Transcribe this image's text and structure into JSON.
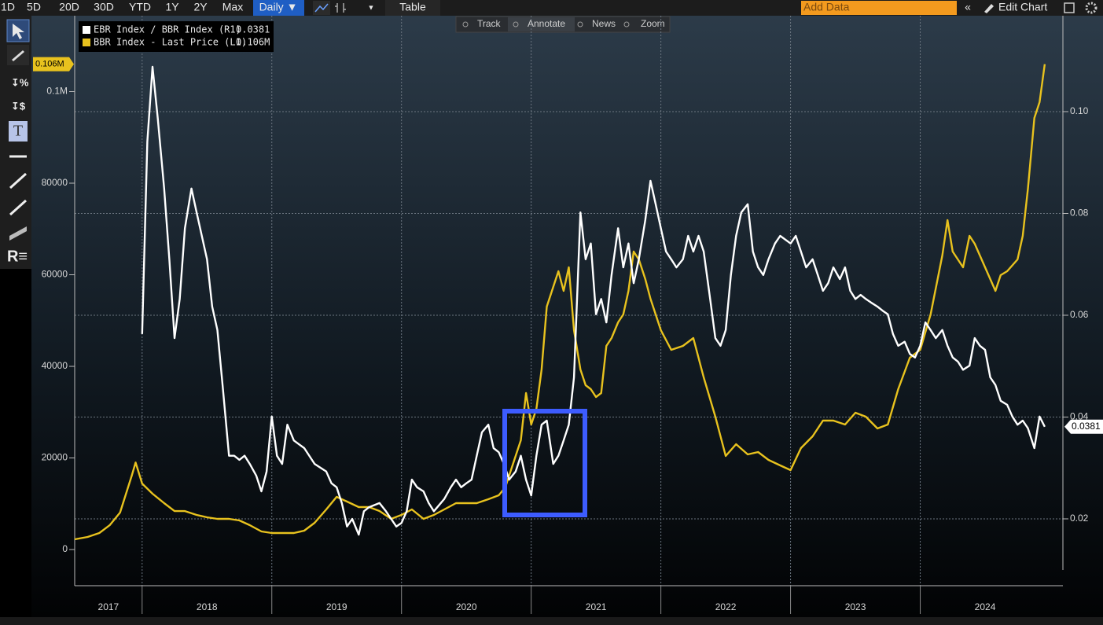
{
  "toolbar": {
    "ranges": [
      "1D",
      "5D",
      "20D",
      "30D",
      "YTD",
      "1Y",
      "2Y",
      "Max"
    ],
    "frequency": "Daily ▼",
    "table": "Table",
    "add_data": "Add Data",
    "edit_chart": "Edit Chart"
  },
  "annotation_bar": [
    "Track",
    "Annotate",
    "News",
    "Zoom"
  ],
  "chart_data": {
    "type": "line",
    "xlim": [
      2017.48,
      2025.1
    ],
    "xticks": [
      2017,
      2018,
      2019,
      2020,
      2021,
      2022,
      2023,
      2024
    ],
    "ylim": [
      -7900,
      116570
    ],
    "yticks": [
      0,
      20000,
      40000,
      60000,
      80000,
      {
        "value": 100000,
        "label": "0.1M"
      }
    ],
    "y2lim": [
      0.00687,
      0.11884
    ],
    "y2ticks": [
      0.02,
      0.04,
      0.06,
      0.08,
      {
        "value": 0.1,
        "label": "0.10"
      }
    ],
    "grid": true,
    "grid_axis": "y2",
    "series": [
      {
        "name": "EBR Index / BBR Index (R1)",
        "color": "#ffffff",
        "axis": "y2",
        "x": [
          2018.0,
          2018.04,
          2018.08,
          2018.12,
          2018.17,
          2018.21,
          2018.25,
          2018.29,
          2018.33,
          2018.38,
          2018.42,
          2018.46,
          2018.5,
          2018.54,
          2018.58,
          2018.62,
          2018.67,
          2018.71,
          2018.75,
          2018.79,
          2018.83,
          2018.88,
          2018.92,
          2018.96,
          2019.0,
          2019.04,
          2019.08,
          2019.12,
          2019.17,
          2019.25,
          2019.33,
          2019.42,
          2019.46,
          2019.5,
          2019.54,
          2019.58,
          2019.62,
          2019.67,
          2019.71,
          2019.75,
          2019.83,
          2019.88,
          2019.92,
          2019.96,
          2020.0,
          2020.04,
          2020.08,
          2020.12,
          2020.17,
          2020.21,
          2020.25,
          2020.33,
          2020.38,
          2020.42,
          2020.46,
          2020.5,
          2020.54,
          2020.58,
          2020.62,
          2020.67,
          2020.71,
          2020.75,
          2020.79,
          2020.83,
          2020.88,
          2020.92,
          2020.96,
          2021.0,
          2021.04,
          2021.08,
          2021.12,
          2021.17,
          2021.21,
          2021.25,
          2021.29,
          2021.33,
          2021.38,
          2021.42,
          2021.46,
          2021.5,
          2021.54,
          2021.58,
          2021.62,
          2021.67,
          2021.71,
          2021.75,
          2021.79,
          2021.83,
          2021.88,
          2021.92,
          2021.96,
          2022.0,
          2022.04,
          2022.08,
          2022.12,
          2022.17,
          2022.21,
          2022.25,
          2022.29,
          2022.33,
          2022.38,
          2022.42,
          2022.46,
          2022.5,
          2022.54,
          2022.58,
          2022.62,
          2022.67,
          2022.71,
          2022.75,
          2022.79,
          2022.83,
          2022.88,
          2022.92,
          2023.0,
          2023.04,
          2023.08,
          2023.12,
          2023.17,
          2023.21,
          2023.25,
          2023.29,
          2023.33,
          2023.38,
          2023.42,
          2023.46,
          2023.5,
          2023.54,
          2023.58,
          2023.62,
          2023.67,
          2023.71,
          2023.75,
          2023.79,
          2023.83,
          2023.88,
          2023.92,
          2023.96,
          2024.0,
          2024.04,
          2024.08,
          2024.12,
          2024.17,
          2024.21,
          2024.25,
          2024.29,
          2024.33,
          2024.38,
          2024.42,
          2024.46,
          2024.5,
          2024.54,
          2024.58,
          2024.62,
          2024.67,
          2024.71,
          2024.75,
          2024.79,
          2024.83,
          2024.88,
          2024.92,
          2024.96
        ],
        "values": [
          0.0563,
          0.0941,
          0.1088,
          0.0988,
          0.0849,
          0.071,
          0.0555,
          0.0632,
          0.0771,
          0.0849,
          0.0802,
          0.0756,
          0.071,
          0.0617,
          0.0571,
          0.0463,
          0.0324,
          0.0324,
          0.0316,
          0.0324,
          0.0308,
          0.0285,
          0.0254,
          0.0293,
          0.0401,
          0.0324,
          0.0308,
          0.0385,
          0.0354,
          0.0339,
          0.0308,
          0.0293,
          0.027,
          0.0262,
          0.0231,
          0.0185,
          0.02,
          0.0169,
          0.0215,
          0.0223,
          0.0231,
          0.0215,
          0.02,
          0.0185,
          0.0192,
          0.0215,
          0.0277,
          0.0262,
          0.0254,
          0.0231,
          0.0215,
          0.0239,
          0.0262,
          0.0277,
          0.0262,
          0.027,
          0.0277,
          0.0324,
          0.037,
          0.0385,
          0.0339,
          0.0331,
          0.0308,
          0.0277,
          0.0293,
          0.0324,
          0.0277,
          0.0246,
          0.0324,
          0.0385,
          0.0393,
          0.0308,
          0.0324,
          0.0354,
          0.0385,
          0.0478,
          0.0802,
          0.071,
          0.0741,
          0.0602,
          0.0632,
          0.0586,
          0.0679,
          0.0771,
          0.0694,
          0.0741,
          0.0663,
          0.071,
          0.0787,
          0.0864,
          0.0818,
          0.0771,
          0.0725,
          0.071,
          0.0694,
          0.071,
          0.0756,
          0.0725,
          0.0756,
          0.0725,
          0.0632,
          0.0555,
          0.054,
          0.0571,
          0.0679,
          0.0756,
          0.0802,
          0.0818,
          0.0725,
          0.0694,
          0.0679,
          0.071,
          0.0741,
          0.0756,
          0.0741,
          0.0756,
          0.0725,
          0.0694,
          0.071,
          0.0679,
          0.0648,
          0.0663,
          0.0694,
          0.0671,
          0.0694,
          0.0648,
          0.0632,
          0.064,
          0.0632,
          0.0625,
          0.0617,
          0.0609,
          0.0602,
          0.0563,
          0.054,
          0.0548,
          0.0524,
          0.0517,
          0.054,
          0.0586,
          0.0571,
          0.0555,
          0.0571,
          0.054,
          0.0517,
          0.0509,
          0.0493,
          0.0501,
          0.0555,
          0.054,
          0.0532,
          0.0478,
          0.0463,
          0.0432,
          0.0424,
          0.0401,
          0.0385,
          0.0393,
          0.0378,
          0.0339,
          0.0401,
          0.0381
        ]
      },
      {
        "name": "BBR Index - Last Price (L1)",
        "color": "#e8c21e",
        "axis": "y",
        "last_value_label": "0.106M",
        "x": [
          2017.48,
          2017.58,
          2017.67,
          2017.75,
          2017.83,
          2017.92,
          2017.95,
          2018.0,
          2018.08,
          2018.17,
          2018.25,
          2018.33,
          2018.42,
          2018.5,
          2018.58,
          2018.67,
          2018.75,
          2018.83,
          2018.92,
          2019.0,
          2019.08,
          2019.17,
          2019.25,
          2019.33,
          2019.42,
          2019.5,
          2019.58,
          2019.67,
          2019.75,
          2019.83,
          2019.92,
          2020.0,
          2020.08,
          2020.17,
          2020.25,
          2020.33,
          2020.42,
          2020.5,
          2020.58,
          2020.67,
          2020.75,
          2020.8,
          2020.83,
          2020.92,
          2020.96,
          2021.0,
          2021.04,
          2021.08,
          2021.12,
          2021.17,
          2021.21,
          2021.25,
          2021.29,
          2021.33,
          2021.38,
          2021.42,
          2021.46,
          2021.5,
          2021.54,
          2021.58,
          2021.62,
          2021.67,
          2021.71,
          2021.75,
          2021.79,
          2021.83,
          2021.88,
          2021.92,
          2022.0,
          2022.08,
          2022.17,
          2022.25,
          2022.33,
          2022.42,
          2022.5,
          2022.58,
          2022.67,
          2022.75,
          2022.83,
          2022.92,
          2023.0,
          2023.08,
          2023.17,
          2023.25,
          2023.33,
          2023.42,
          2023.5,
          2023.58,
          2023.67,
          2023.75,
          2023.83,
          2023.92,
          2024.0,
          2024.08,
          2024.17,
          2024.21,
          2024.25,
          2024.33,
          2024.38,
          2024.42,
          2024.5,
          2024.58,
          2024.62,
          2024.67,
          2024.75,
          2024.79,
          2024.83,
          2024.88,
          2024.92,
          2024.96
        ],
        "values": [
          2230,
          2750,
          3600,
          5300,
          8070,
          16140,
          19000,
          14400,
          12190,
          10130,
          8400,
          8400,
          7550,
          7040,
          6700,
          6700,
          6350,
          5320,
          3950,
          3600,
          3600,
          3600,
          4120,
          5840,
          8760,
          11500,
          10470,
          9270,
          9270,
          8410,
          6700,
          7550,
          8760,
          6700,
          7550,
          8760,
          10130,
          10130,
          10130,
          10990,
          11850,
          13560,
          16140,
          23860,
          34160,
          27300,
          30730,
          39310,
          53050,
          57340,
          60770,
          56480,
          61640,
          47900,
          39310,
          35880,
          35020,
          33300,
          34160,
          44460,
          46180,
          49610,
          51330,
          56480,
          65060,
          63350,
          59060,
          54760,
          47900,
          43610,
          44460,
          46180,
          37600,
          29010,
          20430,
          23000,
          20770,
          21290,
          19570,
          18370,
          17340,
          22150,
          24720,
          28150,
          28150,
          27300,
          29870,
          29010,
          26440,
          27300,
          35020,
          41890,
          43610,
          51330,
          64210,
          71930,
          65060,
          61640,
          68500,
          66790,
          61640,
          56480,
          59910,
          60770,
          63350,
          68500,
          78800,
          94250,
          97680,
          106000
        ]
      }
    ]
  }
}
